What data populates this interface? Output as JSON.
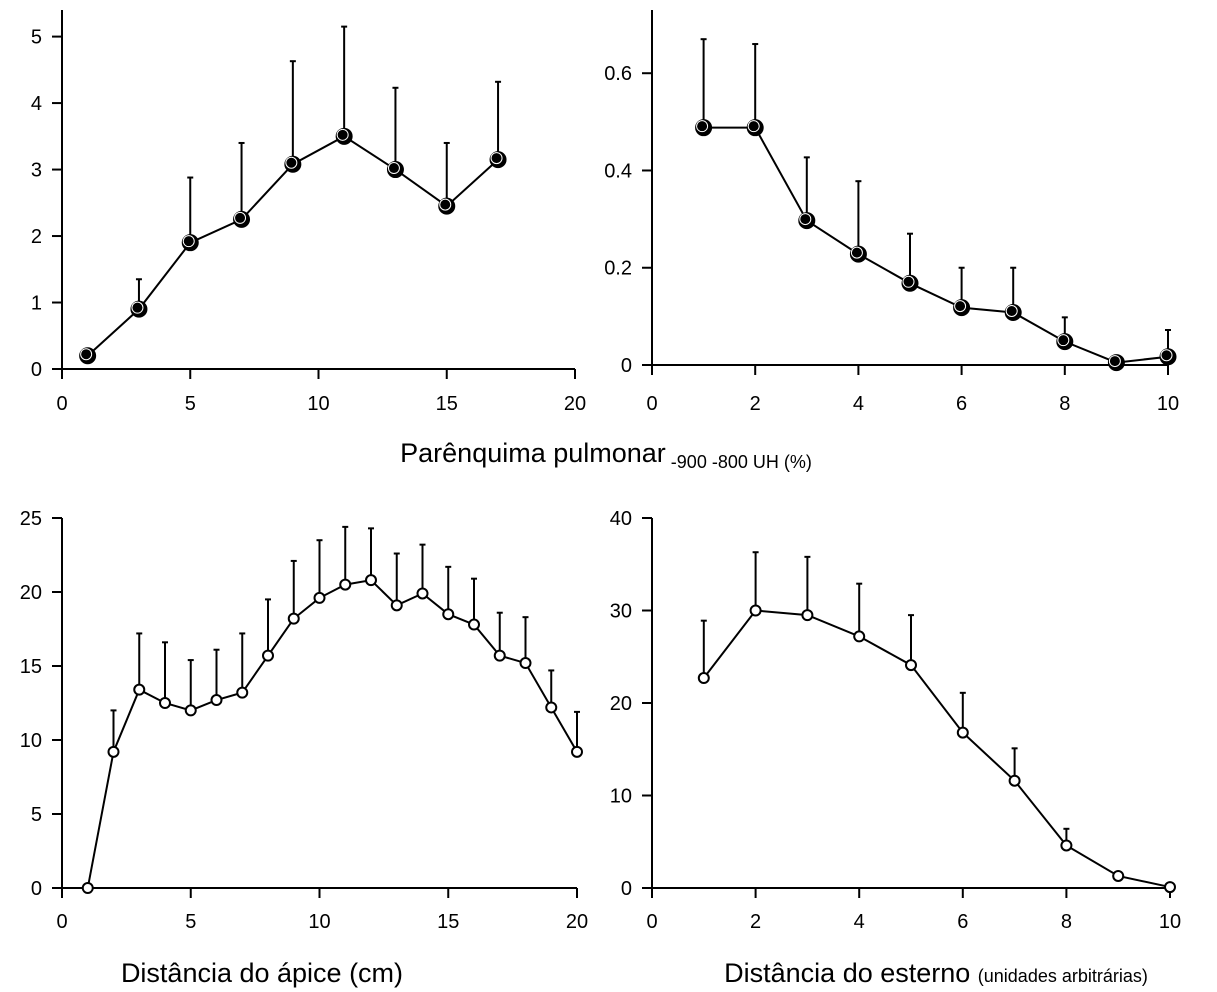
{
  "figure": {
    "shared_xlabel_top": {
      "main": "Parênquima pulmonar",
      "subscript": " -900 -800 UH (%)"
    },
    "xlabel_bottom_left": {
      "main": "Distância do ápice (cm)",
      "small": ""
    },
    "xlabel_bottom_right": {
      "main": "Distância do esterno ",
      "small": "(unidades arbitrárias)"
    }
  },
  "chart_data": [
    {
      "type": "line",
      "panel": "top-left",
      "marker": "filled-circle",
      "xlim": [
        0,
        20
      ],
      "ylim": [
        0,
        5.4
      ],
      "xticks": [
        0,
        5,
        10,
        15,
        20
      ],
      "yticks": [
        0,
        1,
        2,
        3,
        4,
        5
      ],
      "x": [
        1,
        3,
        5,
        7,
        9,
        11,
        13,
        15,
        17
      ],
      "y": [
        0.2,
        0.9,
        1.9,
        2.25,
        3.08,
        3.5,
        3.0,
        2.45,
        3.15
      ],
      "error_upper": [
        null,
        1.35,
        2.88,
        3.4,
        4.63,
        5.15,
        4.23,
        3.4,
        4.32
      ],
      "grid": false
    },
    {
      "type": "line",
      "panel": "top-right",
      "marker": "filled-circle",
      "xlim": [
        0,
        10
      ],
      "ylim": [
        0,
        0.73
      ],
      "xticks": [
        0,
        2,
        4,
        6,
        8,
        10
      ],
      "yticks": [
        0,
        0.2,
        0.4,
        0.6
      ],
      "ytick_labels": [
        "0",
        "0.2",
        "0.4",
        "0.6"
      ],
      "x": [
        1,
        2,
        3,
        4,
        5,
        6,
        7,
        8,
        9,
        10
      ],
      "y": [
        0.488,
        0.488,
        0.297,
        0.228,
        0.168,
        0.118,
        0.108,
        0.048,
        0.005,
        0.017
      ],
      "error_upper": [
        0.67,
        0.66,
        0.427,
        0.378,
        0.27,
        0.2,
        0.2,
        0.098,
        null,
        0.072
      ],
      "grid": false
    },
    {
      "type": "line",
      "panel": "bottom-left",
      "marker": "open-circle",
      "xlim": [
        0,
        20
      ],
      "ylim": [
        0,
        25
      ],
      "xticks": [
        0,
        5,
        10,
        15,
        20
      ],
      "yticks": [
        0,
        5,
        10,
        15,
        20,
        25
      ],
      "x": [
        1,
        2,
        3,
        4,
        5,
        6,
        7,
        8,
        9,
        10,
        11,
        12,
        13,
        14,
        15,
        16,
        17,
        18,
        19,
        20
      ],
      "y": [
        0,
        9.2,
        13.4,
        12.5,
        12.0,
        12.7,
        13.2,
        15.7,
        18.2,
        19.6,
        20.5,
        20.8,
        19.1,
        19.9,
        18.5,
        17.8,
        15.7,
        15.2,
        12.2,
        9.2
      ],
      "error_upper": [
        null,
        12.0,
        17.2,
        16.6,
        15.4,
        16.1,
        17.2,
        19.5,
        22.1,
        23.5,
        24.4,
        24.3,
        22.6,
        23.2,
        21.7,
        20.9,
        18.6,
        18.3,
        14.7,
        11.9
      ],
      "grid": false
    },
    {
      "type": "line",
      "panel": "bottom-right",
      "marker": "open-circle",
      "xlim": [
        0,
        10
      ],
      "ylim": [
        0,
        40
      ],
      "xticks": [
        0,
        2,
        4,
        6,
        8,
        10
      ],
      "yticks": [
        0,
        10,
        20,
        30,
        40
      ],
      "x": [
        1,
        2,
        3,
        4,
        5,
        6,
        7,
        8,
        9,
        10
      ],
      "y": [
        22.7,
        30.0,
        29.5,
        27.2,
        24.1,
        16.8,
        11.6,
        4.6,
        1.3,
        0.1
      ],
      "error_upper": [
        28.9,
        36.3,
        35.8,
        32.9,
        29.5,
        21.1,
        15.1,
        6.4,
        null,
        null
      ],
      "grid": false
    }
  ]
}
